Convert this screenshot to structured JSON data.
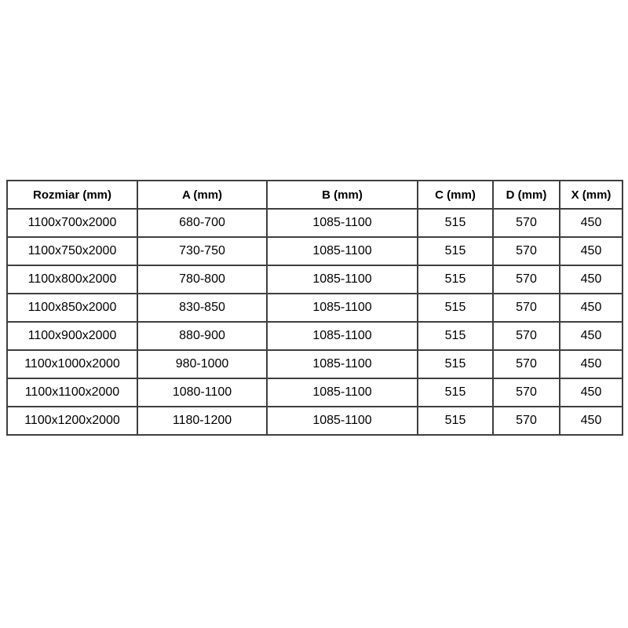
{
  "colors": {
    "page_background": "#ffffff",
    "table_border": "#3f3f3f",
    "text": "#000000"
  },
  "chart_data": {
    "type": "table",
    "title": "",
    "columns": [
      "Rozmiar (mm)",
      "A (mm)",
      "B (mm)",
      "C (mm)",
      "D (mm)",
      "X (mm)"
    ],
    "rows": [
      [
        "1100x700x2000",
        "680-700",
        "1085-1100",
        "515",
        "570",
        "450"
      ],
      [
        "1100x750x2000",
        "730-750",
        "1085-1100",
        "515",
        "570",
        "450"
      ],
      [
        "1100x800x2000",
        "780-800",
        "1085-1100",
        "515",
        "570",
        "450"
      ],
      [
        "1100x850x2000",
        "830-850",
        "1085-1100",
        "515",
        "570",
        "450"
      ],
      [
        "1100x900x2000",
        "880-900",
        "1085-1100",
        "515",
        "570",
        "450"
      ],
      [
        "1100x1000x2000",
        "980-1000",
        "1085-1100",
        "515",
        "570",
        "450"
      ],
      [
        "1100x1100x2000",
        "1080-1100",
        "1085-1100",
        "515",
        "570",
        "450"
      ],
      [
        "1100x1200x2000",
        "1180-1200",
        "1085-1100",
        "515",
        "570",
        "450"
      ]
    ]
  }
}
